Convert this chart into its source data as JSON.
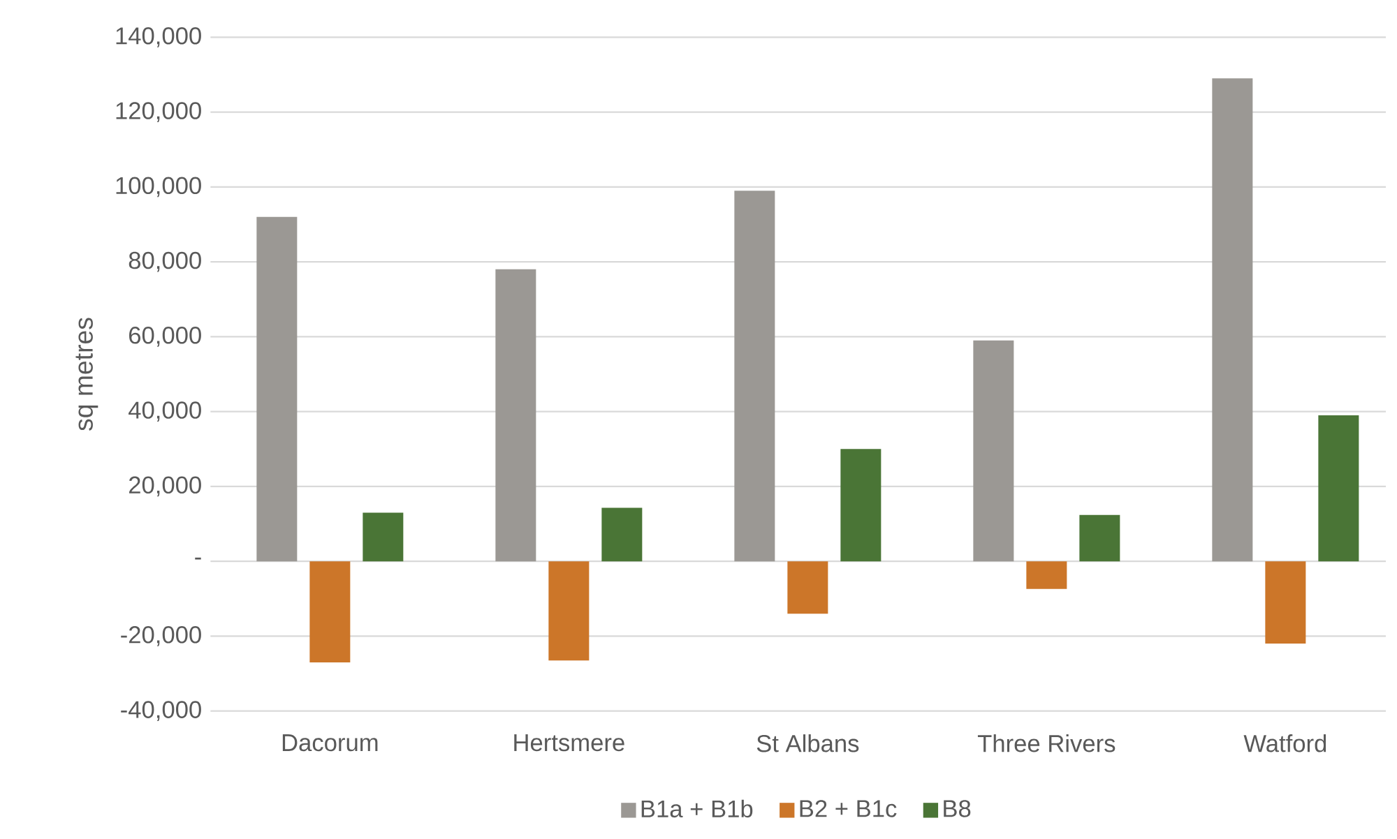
{
  "chart_data": {
    "type": "bar",
    "ylabel": "sq metres",
    "categories": [
      "Dacorum",
      "Hertsmere",
      "St Albans",
      "Three Rivers",
      "Watford"
    ],
    "series": [
      {
        "name": "B1a + B1b",
        "color": "#9b9894",
        "values": [
          92000,
          78000,
          99000,
          59000,
          129000
        ]
      },
      {
        "name": "B2 + B1c",
        "color": "#cc7629",
        "values": [
          -27000,
          -26500,
          -14000,
          -7400,
          -22000
        ]
      },
      {
        "name": "B8",
        "color": "#4a7536",
        "values": [
          13000,
          14300,
          30000,
          12400,
          39000
        ]
      }
    ],
    "ylim": [
      -40000,
      140000
    ],
    "yticks": [
      {
        "value": -40000,
        "label": "-40,000"
      },
      {
        "value": -20000,
        "label": "-20,000"
      },
      {
        "value": 0,
        "label": "-"
      },
      {
        "value": 20000,
        "label": "20,000"
      },
      {
        "value": 40000,
        "label": "40,000"
      },
      {
        "value": 60000,
        "label": "60,000"
      },
      {
        "value": 80000,
        "label": "80,000"
      },
      {
        "value": 100000,
        "label": "100,000"
      },
      {
        "value": 120000,
        "label": "120,000"
      },
      {
        "value": 140000,
        "label": "140,000"
      }
    ],
    "grid": "y",
    "legend": "bottom"
  }
}
